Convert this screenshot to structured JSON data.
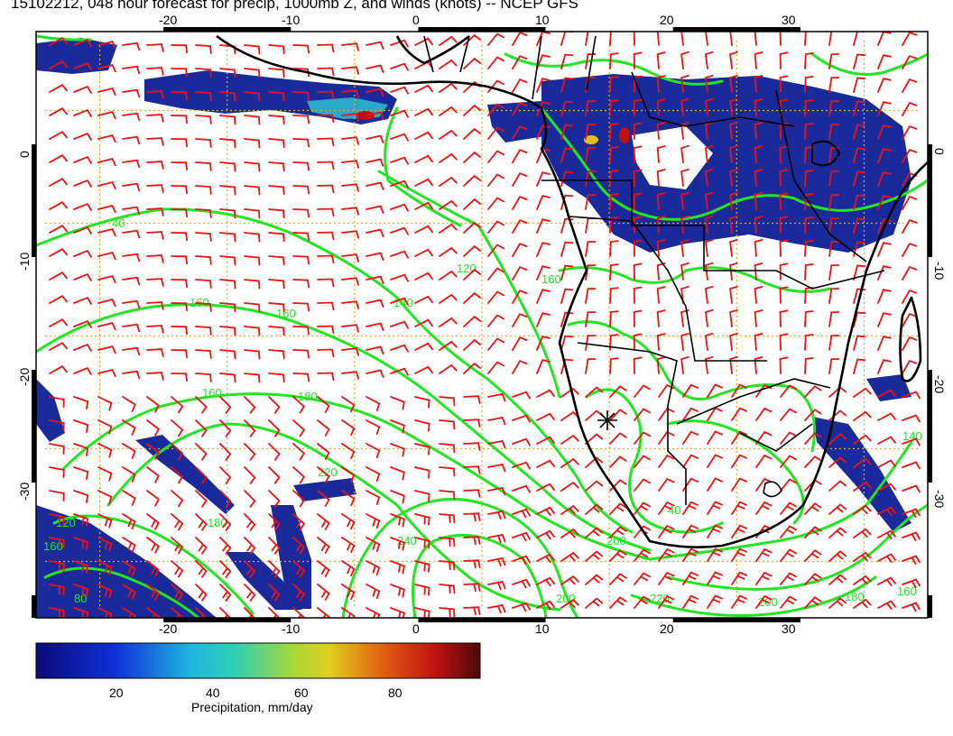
{
  "title": "15102212, 048 hour forecast for precip, 1000mb Z, and winds (knots) -- NCEP GFS",
  "axes": {
    "lon_ticks": [
      "-20",
      "-10",
      "0",
      "10",
      "20",
      "30"
    ],
    "lat_ticks": [
      "0",
      "-10",
      "-20",
      "-30"
    ],
    "lon_range": [
      -30,
      40
    ],
    "lat_range": [
      -40,
      12
    ]
  },
  "colorbar": {
    "ticks": [
      "20",
      "40",
      "60",
      "80"
    ],
    "label": "Precipitation, mm/day",
    "range": [
      0,
      100
    ]
  },
  "contour_labels": [
    "40",
    "160",
    "160",
    "160",
    "180",
    "220",
    "120",
    "160",
    "80",
    "180",
    "240",
    "200",
    "200",
    "220",
    "180",
    "160",
    "200",
    "140",
    "120",
    "140",
    "40",
    "160"
  ],
  "colors": {
    "contour": "#22e622",
    "barb": "#ee1111",
    "coast": "#000000",
    "grid": "#e0b020",
    "precip_low": "#1a2a9a",
    "precip_mid": "#2aa8c8",
    "precip_high": "#c01010"
  }
}
